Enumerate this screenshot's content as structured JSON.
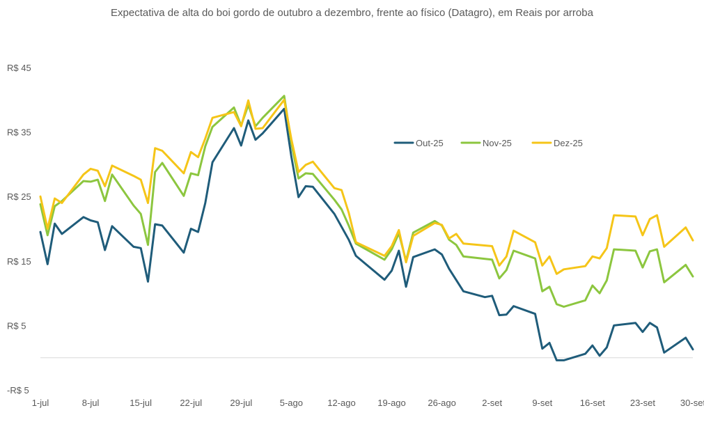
{
  "chart_data": {
    "type": "line",
    "title": "Expectativa de alta do boi gordo de outubro a dezembro, frente ao físico (Datagro), em Reais por arroba",
    "y_ticks": [
      {
        "value": 45,
        "label": "R$ 45"
      },
      {
        "value": 35,
        "label": "R$ 35"
      },
      {
        "value": 25,
        "label": "R$ 25"
      },
      {
        "value": 15,
        "label": "R$ 15"
      },
      {
        "value": 5,
        "label": "R$ 5"
      },
      {
        "value": -5,
        "label": "-R$ 5"
      }
    ],
    "ylim": [
      -5,
      45
    ],
    "x_ticks": [
      "1-jul",
      "8-jul",
      "15-jul",
      "22-jul",
      "29-jul",
      "5-ago",
      "12-ago",
      "19-ago",
      "26-ago",
      "2-set",
      "9-set",
      "16-set",
      "23-set",
      "30-set"
    ],
    "xlim": [
      "2025-07-01",
      "2025-09-30"
    ],
    "legend_position": "top-right",
    "series": [
      {
        "name": "Out-25",
        "color": "#1f5c7a",
        "points": [
          [
            "2025-07-01",
            19.5
          ],
          [
            "2025-07-02",
            14.5
          ],
          [
            "2025-07-03",
            20.8
          ],
          [
            "2025-07-04",
            19.2
          ],
          [
            "2025-07-07",
            21.8
          ],
          [
            "2025-07-08",
            21.3
          ],
          [
            "2025-07-09",
            21.0
          ],
          [
            "2025-07-10",
            16.7
          ],
          [
            "2025-07-11",
            20.4
          ],
          [
            "2025-07-14",
            17.2
          ],
          [
            "2025-07-15",
            17.0
          ],
          [
            "2025-07-16",
            11.8
          ],
          [
            "2025-07-17",
            20.7
          ],
          [
            "2025-07-18",
            20.5
          ],
          [
            "2025-07-21",
            16.3
          ],
          [
            "2025-07-22",
            20.0
          ],
          [
            "2025-07-23",
            19.5
          ],
          [
            "2025-07-24",
            24.0
          ],
          [
            "2025-07-25",
            30.3
          ],
          [
            "2025-07-28",
            35.6
          ],
          [
            "2025-07-29",
            32.9
          ],
          [
            "2025-07-30",
            36.8
          ],
          [
            "2025-07-31",
            33.8
          ],
          [
            "2025-08-01",
            34.8
          ],
          [
            "2025-08-04",
            38.6
          ],
          [
            "2025-08-05",
            31.2
          ],
          [
            "2025-08-06",
            24.9
          ],
          [
            "2025-08-07",
            26.6
          ],
          [
            "2025-08-08",
            26.5
          ],
          [
            "2025-08-11",
            22.3
          ],
          [
            "2025-08-12",
            20.3
          ],
          [
            "2025-08-13",
            18.3
          ],
          [
            "2025-08-14",
            15.8
          ],
          [
            "2025-08-18",
            12.1
          ],
          [
            "2025-08-19",
            13.5
          ],
          [
            "2025-08-20",
            16.6
          ],
          [
            "2025-08-21",
            11.0
          ],
          [
            "2025-08-22",
            15.6
          ],
          [
            "2025-08-25",
            16.8
          ],
          [
            "2025-08-26",
            16.0
          ],
          [
            "2025-08-27",
            13.8
          ],
          [
            "2025-08-29",
            10.3
          ],
          [
            "2025-09-01",
            9.4
          ],
          [
            "2025-09-02",
            9.6
          ],
          [
            "2025-09-03",
            6.6
          ],
          [
            "2025-09-04",
            6.7
          ],
          [
            "2025-09-05",
            8.0
          ],
          [
            "2025-09-08",
            6.8
          ],
          [
            "2025-09-09",
            1.4
          ],
          [
            "2025-09-10",
            2.3
          ],
          [
            "2025-09-11",
            -0.4
          ],
          [
            "2025-09-12",
            -0.4
          ],
          [
            "2025-09-15",
            0.6
          ],
          [
            "2025-09-16",
            1.9
          ],
          [
            "2025-09-17",
            0.3
          ],
          [
            "2025-09-18",
            1.6
          ],
          [
            "2025-09-19",
            5.0
          ],
          [
            "2025-09-22",
            5.4
          ],
          [
            "2025-09-23",
            4.0
          ],
          [
            "2025-09-24",
            5.4
          ],
          [
            "2025-09-25",
            4.7
          ],
          [
            "2025-09-26",
            0.8
          ],
          [
            "2025-09-29",
            3.1
          ],
          [
            "2025-09-30",
            1.3
          ]
        ]
      },
      {
        "name": "Nov-25",
        "color": "#8cc63f",
        "points": [
          [
            "2025-07-01",
            23.8
          ],
          [
            "2025-07-02",
            19.0
          ],
          [
            "2025-07-03",
            23.5
          ],
          [
            "2025-07-04",
            24.3
          ],
          [
            "2025-07-07",
            27.4
          ],
          [
            "2025-07-08",
            27.3
          ],
          [
            "2025-07-09",
            27.6
          ],
          [
            "2025-07-10",
            24.3
          ],
          [
            "2025-07-11",
            28.4
          ],
          [
            "2025-07-14",
            23.6
          ],
          [
            "2025-07-15",
            22.3
          ],
          [
            "2025-07-16",
            17.5
          ],
          [
            "2025-07-17",
            28.8
          ],
          [
            "2025-07-18",
            30.2
          ],
          [
            "2025-07-21",
            25.1
          ],
          [
            "2025-07-22",
            28.6
          ],
          [
            "2025-07-23",
            28.3
          ],
          [
            "2025-07-24",
            32.8
          ],
          [
            "2025-07-25",
            35.8
          ],
          [
            "2025-07-28",
            38.8
          ],
          [
            "2025-07-29",
            36.0
          ],
          [
            "2025-07-30",
            39.2
          ],
          [
            "2025-07-31",
            35.9
          ],
          [
            "2025-08-01",
            37.2
          ],
          [
            "2025-08-04",
            40.6
          ],
          [
            "2025-08-05",
            33.3
          ],
          [
            "2025-08-06",
            27.8
          ],
          [
            "2025-08-07",
            28.6
          ],
          [
            "2025-08-08",
            28.5
          ],
          [
            "2025-08-11",
            24.5
          ],
          [
            "2025-08-12",
            23.0
          ],
          [
            "2025-08-13",
            20.5
          ],
          [
            "2025-08-14",
            17.7
          ],
          [
            "2025-08-18",
            15.2
          ],
          [
            "2025-08-19",
            16.8
          ],
          [
            "2025-08-20",
            19.3
          ],
          [
            "2025-08-21",
            15.0
          ],
          [
            "2025-08-22",
            19.4
          ],
          [
            "2025-08-25",
            21.2
          ],
          [
            "2025-08-26",
            20.5
          ],
          [
            "2025-08-27",
            18.3
          ],
          [
            "2025-08-28",
            17.5
          ],
          [
            "2025-08-29",
            15.7
          ],
          [
            "2025-09-02",
            15.2
          ],
          [
            "2025-09-03",
            12.3
          ],
          [
            "2025-09-04",
            13.6
          ],
          [
            "2025-09-05",
            16.6
          ],
          [
            "2025-09-08",
            15.4
          ],
          [
            "2025-09-09",
            10.3
          ],
          [
            "2025-09-10",
            11.0
          ],
          [
            "2025-09-11",
            8.3
          ],
          [
            "2025-09-12",
            7.9
          ],
          [
            "2025-09-15",
            8.9
          ],
          [
            "2025-09-16",
            11.2
          ],
          [
            "2025-09-17",
            10.0
          ],
          [
            "2025-09-18",
            12.0
          ],
          [
            "2025-09-19",
            16.8
          ],
          [
            "2025-09-22",
            16.6
          ],
          [
            "2025-09-23",
            14.0
          ],
          [
            "2025-09-24",
            16.5
          ],
          [
            "2025-09-25",
            16.8
          ],
          [
            "2025-09-26",
            11.7
          ],
          [
            "2025-09-29",
            14.4
          ],
          [
            "2025-09-30",
            12.6
          ]
        ]
      },
      {
        "name": "Dez-25",
        "color": "#f5c518",
        "points": [
          [
            "2025-07-01",
            25.0
          ],
          [
            "2025-07-02",
            20.0
          ],
          [
            "2025-07-03",
            24.7
          ],
          [
            "2025-07-04",
            24.0
          ],
          [
            "2025-07-07",
            28.4
          ],
          [
            "2025-07-08",
            29.3
          ],
          [
            "2025-07-09",
            29.0
          ],
          [
            "2025-07-10",
            26.6
          ],
          [
            "2025-07-11",
            29.8
          ],
          [
            "2025-07-14",
            28.2
          ],
          [
            "2025-07-15",
            27.6
          ],
          [
            "2025-07-16",
            24.0
          ],
          [
            "2025-07-17",
            32.5
          ],
          [
            "2025-07-18",
            32.1
          ],
          [
            "2025-07-21",
            28.6
          ],
          [
            "2025-07-22",
            31.9
          ],
          [
            "2025-07-23",
            31.1
          ],
          [
            "2025-07-24",
            34.0
          ],
          [
            "2025-07-25",
            37.2
          ],
          [
            "2025-07-28",
            38.1
          ],
          [
            "2025-07-29",
            35.9
          ],
          [
            "2025-07-30",
            39.9
          ],
          [
            "2025-07-31",
            35.5
          ],
          [
            "2025-08-01",
            35.6
          ],
          [
            "2025-08-04",
            40.0
          ],
          [
            "2025-08-05",
            33.9
          ],
          [
            "2025-08-06",
            28.8
          ],
          [
            "2025-08-07",
            29.9
          ],
          [
            "2025-08-08",
            30.4
          ],
          [
            "2025-08-11",
            26.3
          ],
          [
            "2025-08-12",
            26.0
          ],
          [
            "2025-08-13",
            22.5
          ],
          [
            "2025-08-14",
            17.9
          ],
          [
            "2025-08-18",
            15.8
          ],
          [
            "2025-08-19",
            17.3
          ],
          [
            "2025-08-20",
            19.8
          ],
          [
            "2025-08-21",
            14.8
          ],
          [
            "2025-08-22",
            18.9
          ],
          [
            "2025-08-25",
            20.9
          ],
          [
            "2025-08-26",
            20.6
          ],
          [
            "2025-08-27",
            18.5
          ],
          [
            "2025-08-28",
            19.2
          ],
          [
            "2025-08-29",
            17.7
          ],
          [
            "2025-09-02",
            17.3
          ],
          [
            "2025-09-03",
            14.3
          ],
          [
            "2025-09-04",
            15.7
          ],
          [
            "2025-09-05",
            19.7
          ],
          [
            "2025-09-08",
            17.9
          ],
          [
            "2025-09-09",
            14.3
          ],
          [
            "2025-09-10",
            15.7
          ],
          [
            "2025-09-11",
            13.0
          ],
          [
            "2025-09-12",
            13.7
          ],
          [
            "2025-09-15",
            14.2
          ],
          [
            "2025-09-16",
            15.7
          ],
          [
            "2025-09-17",
            15.4
          ],
          [
            "2025-09-18",
            17.0
          ],
          [
            "2025-09-19",
            22.1
          ],
          [
            "2025-09-22",
            21.9
          ],
          [
            "2025-09-23",
            19.0
          ],
          [
            "2025-09-24",
            21.5
          ],
          [
            "2025-09-25",
            22.1
          ],
          [
            "2025-09-26",
            17.2
          ],
          [
            "2025-09-29",
            20.2
          ],
          [
            "2025-09-30",
            18.2
          ]
        ]
      }
    ]
  }
}
